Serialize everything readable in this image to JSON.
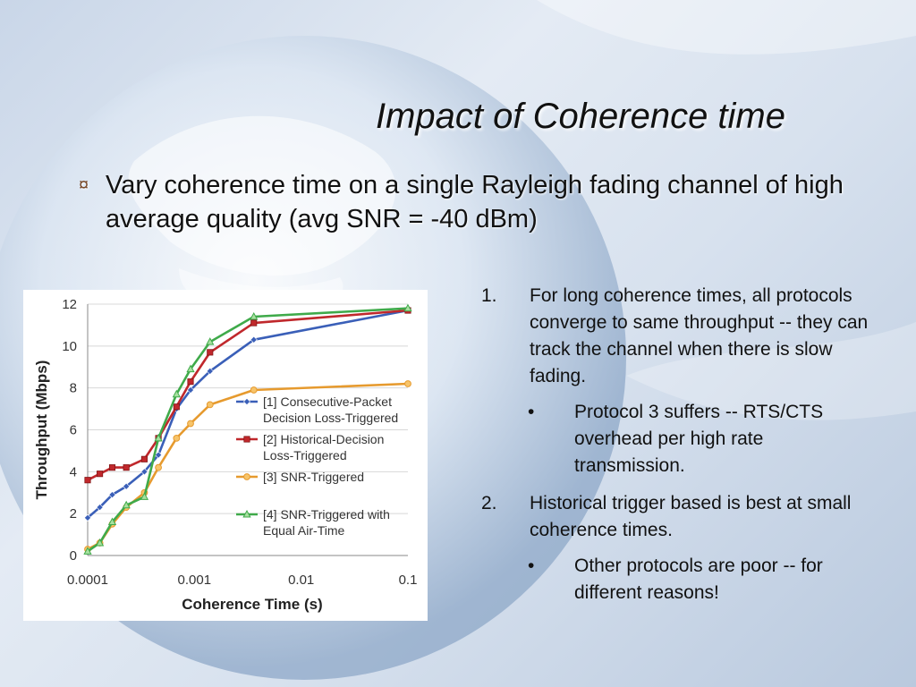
{
  "slide": {
    "title": "Impact of Coherence time",
    "bullet_icon": "quad-arrow-bullet-icon",
    "bullet": "Vary coherence time on a single Rayleigh fading channel of high average quality (avg SNR = -40 dBm)"
  },
  "notes": [
    {
      "num": "1.",
      "text": "For long coherence times,  all protocols converge to same throughput -- they can track the channel when there is slow fading.",
      "sub": "Protocol 3 suffers -- RTS/CTS overhead per high rate transmission."
    },
    {
      "num": "2.",
      "text": "Historical trigger based is best at small coherence times.",
      "sub": "Other protocols are poor -- for different reasons!"
    }
  ],
  "bullet_dot": "•",
  "chart_data": {
    "type": "line",
    "xlabel": "Coherence Time (s)",
    "ylabel": "Throughput (Mbps)",
    "xscale": "log",
    "xlim": [
      0.0001,
      0.1
    ],
    "ylim": [
      0,
      12
    ],
    "xtick_labels": [
      "0.0001",
      "0.001",
      "0.01",
      "0.1"
    ],
    "ytick_labels": [
      "0",
      "2",
      "4",
      "6",
      "8",
      "10",
      "12"
    ],
    "grid": "horizontal",
    "legend_position": "right",
    "series": [
      {
        "name": "[1] Consecutive-Packet Decision Loss-Triggered",
        "color": "#3a5fb8",
        "marker": "diamond",
        "x": [
          0.0001,
          0.00013,
          0.00017,
          0.00023,
          0.00034,
          0.00046,
          0.00068,
          0.00092,
          0.0014,
          0.0036,
          0.1
        ],
        "y": [
          1.8,
          2.3,
          2.9,
          3.3,
          4.0,
          4.8,
          7.0,
          7.9,
          8.8,
          10.3,
          11.7
        ]
      },
      {
        "name": "[2] Historical-Decision Loss-Triggered",
        "color": "#c0282c",
        "marker": "square",
        "x": [
          0.0001,
          0.00013,
          0.00017,
          0.00023,
          0.00034,
          0.00046,
          0.00068,
          0.00092,
          0.0014,
          0.0036,
          0.1
        ],
        "y": [
          3.6,
          3.9,
          4.2,
          4.2,
          4.6,
          5.6,
          7.1,
          8.3,
          9.7,
          11.1,
          11.7
        ]
      },
      {
        "name": "[3] SNR-Triggered",
        "color": "#e69a2e",
        "marker": "circle",
        "x": [
          0.0001,
          0.00013,
          0.00017,
          0.00023,
          0.00034,
          0.00046,
          0.00068,
          0.00092,
          0.0014,
          0.0036,
          0.1
        ],
        "y": [
          0.3,
          0.6,
          1.5,
          2.3,
          3.0,
          4.2,
          5.6,
          6.3,
          7.2,
          7.9,
          8.2
        ]
      },
      {
        "name": "[4] SNR-Triggered with Equal Air-Time",
        "color": "#3faa4a",
        "marker": "triangle",
        "x": [
          0.0001,
          0.00013,
          0.00017,
          0.00023,
          0.00034,
          0.00046,
          0.00068,
          0.00092,
          0.0014,
          0.0036,
          0.1
        ],
        "y": [
          0.2,
          0.6,
          1.6,
          2.4,
          2.8,
          5.6,
          7.7,
          8.9,
          10.2,
          11.4,
          11.8
        ]
      }
    ]
  }
}
